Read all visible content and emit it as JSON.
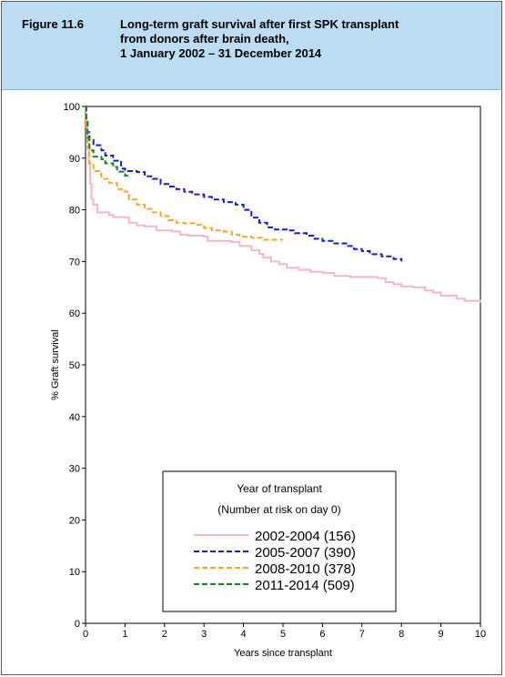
{
  "figure": {
    "number": "Figure 11.6",
    "title_lines": [
      "Long-term graft survival after first SPK transplant",
      "from donors after brain death,",
      "1 January 2002 – 31 December 2014"
    ]
  },
  "chart_data": {
    "type": "line",
    "xlabel": "Years since transplant",
    "ylabel": "% Graft survival",
    "xlim": [
      0,
      10
    ],
    "ylim": [
      0,
      100
    ],
    "x_ticks": [
      0,
      1,
      2,
      3,
      4,
      5,
      6,
      7,
      8,
      9,
      10
    ],
    "y_ticks": [
      0,
      10,
      20,
      30,
      40,
      50,
      60,
      70,
      80,
      90,
      100
    ],
    "grid": false,
    "legend": {
      "title": "Year of transplant",
      "subtitle": "(Number at risk on day 0)",
      "placement": "bottom-center"
    },
    "series": [
      {
        "name": "2002-2004 (156)",
        "color": "#f4b6c2",
        "dash": "solid",
        "points": [
          [
            0,
            100
          ],
          [
            0.02,
            97
          ],
          [
            0.05,
            93
          ],
          [
            0.08,
            89
          ],
          [
            0.12,
            85
          ],
          [
            0.15,
            82
          ],
          [
            0.2,
            81
          ],
          [
            0.3,
            79.5
          ],
          [
            0.6,
            79
          ],
          [
            0.7,
            78.6
          ],
          [
            1.0,
            78.5
          ],
          [
            1.1,
            77.5
          ],
          [
            1.3,
            77
          ],
          [
            1.5,
            76.8
          ],
          [
            1.8,
            76
          ],
          [
            2.2,
            75.8
          ],
          [
            2.4,
            75.2
          ],
          [
            2.6,
            75
          ],
          [
            3.0,
            74.8
          ],
          [
            3.1,
            74
          ],
          [
            3.7,
            73.8
          ],
          [
            3.9,
            73
          ],
          [
            4.2,
            72.2
          ],
          [
            4.4,
            71.5
          ],
          [
            4.5,
            70.8
          ],
          [
            4.7,
            70
          ],
          [
            4.9,
            69.5
          ],
          [
            5.1,
            68.8
          ],
          [
            5.4,
            68.4
          ],
          [
            5.7,
            68
          ],
          [
            6.0,
            67.8
          ],
          [
            6.3,
            67.2
          ],
          [
            6.7,
            67
          ],
          [
            7.0,
            67
          ],
          [
            7.4,
            66.8
          ],
          [
            7.6,
            66
          ],
          [
            7.8,
            65.6
          ],
          [
            8.0,
            65.2
          ],
          [
            8.3,
            65
          ],
          [
            8.6,
            64.4
          ],
          [
            8.8,
            64
          ],
          [
            9.0,
            63.4
          ],
          [
            9.4,
            62.8
          ],
          [
            9.6,
            62.4
          ],
          [
            10.0,
            62
          ]
        ]
      },
      {
        "name": "2005-2007 (390)",
        "color": "#1a1ad6",
        "dash": "dashed",
        "points": [
          [
            0,
            100
          ],
          [
            0.02,
            97
          ],
          [
            0.05,
            95
          ],
          [
            0.1,
            93.5
          ],
          [
            0.2,
            92.5
          ],
          [
            0.4,
            91.5
          ],
          [
            0.5,
            90.5
          ],
          [
            0.7,
            89.5
          ],
          [
            0.9,
            88
          ],
          [
            1.0,
            87.5
          ],
          [
            1.3,
            87.3
          ],
          [
            1.5,
            86.5
          ],
          [
            1.7,
            86
          ],
          [
            1.9,
            85
          ],
          [
            2.1,
            84.5
          ],
          [
            2.3,
            84
          ],
          [
            2.5,
            83.5
          ],
          [
            2.7,
            83
          ],
          [
            3.0,
            82.5
          ],
          [
            3.2,
            82
          ],
          [
            3.5,
            81.5
          ],
          [
            3.8,
            81
          ],
          [
            4.0,
            80
          ],
          [
            4.2,
            78.5
          ],
          [
            4.4,
            77.5
          ],
          [
            4.6,
            76.6
          ],
          [
            4.8,
            76.2
          ],
          [
            5.1,
            76
          ],
          [
            5.3,
            75.5
          ],
          [
            5.6,
            75
          ],
          [
            5.8,
            74.4
          ],
          [
            6.0,
            74
          ],
          [
            6.3,
            73.5
          ],
          [
            6.6,
            73
          ],
          [
            6.8,
            72.4
          ],
          [
            7.0,
            72
          ],
          [
            7.2,
            71.4
          ],
          [
            7.5,
            71
          ],
          [
            7.8,
            70.5
          ],
          [
            8.0,
            70
          ]
        ]
      },
      {
        "name": "2008-2010 (378)",
        "color": "#f8a820",
        "dash": "dashed",
        "points": [
          [
            0,
            100
          ],
          [
            0.02,
            96
          ],
          [
            0.05,
            92
          ],
          [
            0.1,
            89
          ],
          [
            0.2,
            87.5
          ],
          [
            0.4,
            86
          ],
          [
            0.6,
            85.2
          ],
          [
            0.8,
            84
          ],
          [
            1.0,
            83.5
          ],
          [
            1.1,
            82
          ],
          [
            1.3,
            81
          ],
          [
            1.5,
            80.2
          ],
          [
            1.7,
            79.5
          ],
          [
            1.9,
            78.8
          ],
          [
            2.1,
            78
          ],
          [
            2.3,
            77.5
          ],
          [
            2.5,
            77.4
          ],
          [
            2.8,
            77.1
          ],
          [
            3.0,
            76.5
          ],
          [
            3.2,
            76
          ],
          [
            3.5,
            75.8
          ],
          [
            3.7,
            75.2
          ],
          [
            3.9,
            74.8
          ],
          [
            4.2,
            74.6
          ],
          [
            4.5,
            74.2
          ],
          [
            5.0,
            74.2
          ]
        ]
      },
      {
        "name": "2011-2014 (509)",
        "color": "#0e8a1a",
        "dash": "dashed",
        "points": [
          [
            0,
            100
          ],
          [
            0.02,
            97
          ],
          [
            0.05,
            94
          ],
          [
            0.1,
            91.5
          ],
          [
            0.2,
            90.3
          ],
          [
            0.4,
            89.8
          ],
          [
            0.5,
            89
          ],
          [
            0.7,
            88.3
          ],
          [
            0.8,
            87.4
          ],
          [
            1.0,
            86.6
          ],
          [
            1.1,
            86.2
          ]
        ]
      }
    ]
  }
}
